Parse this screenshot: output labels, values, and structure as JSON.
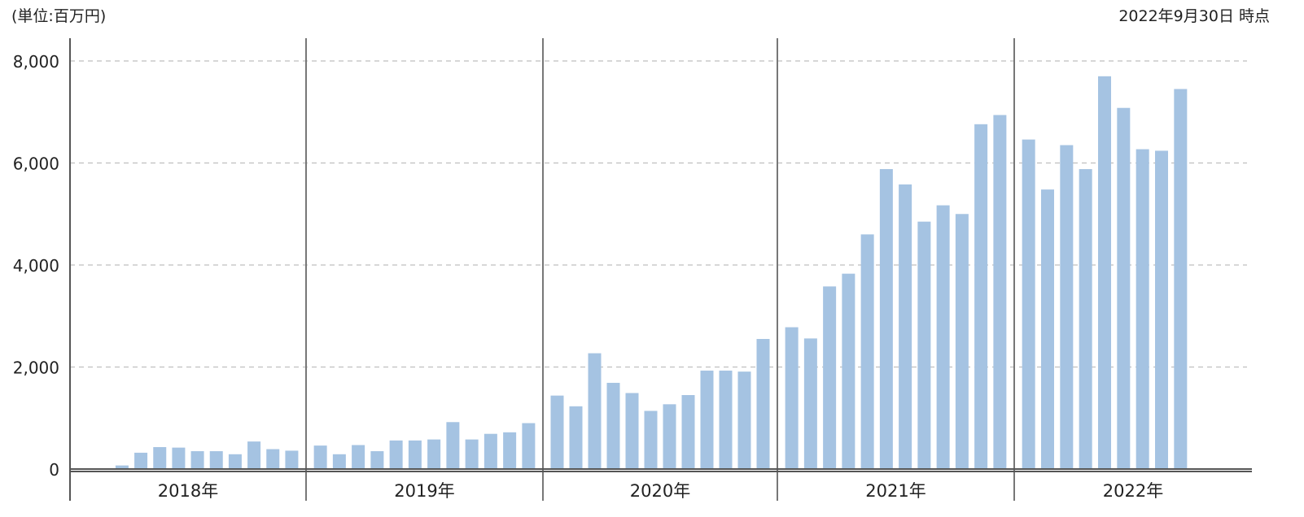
{
  "unit_label": "(単位:百万円)",
  "as_of_label": "2022年9月30日 時点",
  "colors": {
    "bar": "#a5c3e2",
    "grid": "#bfbfbf",
    "axis": "#555555",
    "separator": "#777777"
  },
  "chart_data": {
    "type": "bar",
    "ylim": [
      0,
      8000
    ],
    "yticks": [
      0,
      2000,
      4000,
      6000,
      8000
    ],
    "ytick_labels": [
      "0",
      "2,000",
      "4,000",
      "6,000",
      "8,000"
    ],
    "grid": true,
    "years": [
      {
        "label": "2018年",
        "values": [
          0,
          70,
          320,
          430,
          420,
          350,
          350,
          290,
          540,
          390,
          360
        ]
      },
      {
        "label": "2019年",
        "values": [
          460,
          290,
          470,
          350,
          560,
          560,
          580,
          920,
          580,
          690,
          720,
          900
        ]
      },
      {
        "label": "2020年",
        "values": [
          1440,
          1230,
          2270,
          1690,
          1490,
          1140,
          1270,
          1450,
          1930,
          1930,
          1910,
          2550
        ]
      },
      {
        "label": "2021年",
        "values": [
          2780,
          2560,
          3580,
          3830,
          4600,
          5880,
          5580,
          4850,
          5170,
          5000,
          6760,
          6940
        ]
      },
      {
        "label": "2022年",
        "values": [
          6460,
          5480,
          6350,
          5880,
          7700,
          7080,
          6270,
          6240,
          7450
        ]
      }
    ]
  }
}
